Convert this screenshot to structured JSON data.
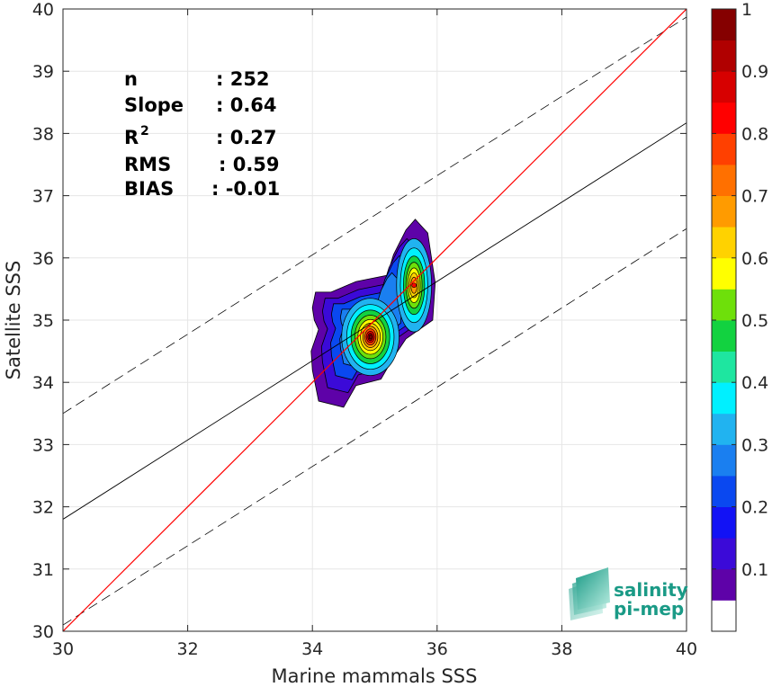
{
  "chart_data": {
    "type": "heatmap",
    "xlabel": "Marine mammals SSS",
    "ylabel": "Satellite SSS",
    "xlim": [
      30,
      40
    ],
    "ylim": [
      30,
      40
    ],
    "x_ticks": [
      "30",
      "32",
      "34",
      "36",
      "38",
      "40"
    ],
    "y_ticks": [
      "30",
      "31",
      "32",
      "33",
      "34",
      "35",
      "36",
      "37",
      "38",
      "39",
      "40"
    ],
    "grid": true,
    "stats": [
      {
        "label": "n",
        "value": ": 252"
      },
      {
        "label": "Slope",
        "value": ": 0.64"
      },
      {
        "label": "R",
        "sup": "2",
        "value": ": 0.27"
      },
      {
        "label": "RMS",
        "value": ": 0.59"
      },
      {
        "label": "BIAS",
        "value": ": -0.01"
      }
    ],
    "lines": {
      "identity": {
        "color": "#ff0000",
        "slope": 1,
        "intercept": 0
      },
      "regression": {
        "color": "#000000",
        "x": [
          30,
          40
        ],
        "y": [
          31.8,
          38.17
        ]
      },
      "upper_bound": {
        "color": "#000000",
        "dash": true,
        "x": [
          30,
          40
        ],
        "y": [
          33.5,
          39.87
        ]
      },
      "lower_bound": {
        "color": "#000000",
        "dash": true,
        "x": [
          30,
          40
        ],
        "y": [
          30.1,
          36.47
        ]
      }
    },
    "density": {
      "peaks": [
        {
          "x": 34.93,
          "y": 34.73,
          "value": 1.0
        },
        {
          "x": 35.63,
          "y": 35.56,
          "value": 0.7
        }
      ],
      "extent_x": [
        33.98,
        36.0
      ],
      "extent_y": [
        33.58,
        36.62
      ]
    },
    "colorbar": {
      "ticks": [
        "0.1",
        "0.2",
        "0.3",
        "0.4",
        "0.5",
        "0.6",
        "0.7",
        "0.8",
        "0.9",
        "1"
      ],
      "colors": [
        "#ffffff",
        "#5e02a8",
        "#3b0ad8",
        "#1212f5",
        "#0a48f0",
        "#1a7ff0",
        "#21b3f0",
        "#00f0ff",
        "#1ee6a0",
        "#12d240",
        "#6ee00a",
        "#ffff00",
        "#ffd200",
        "#ff9b00",
        "#ff7000",
        "#ff4000",
        "#ff0000",
        "#d70000",
        "#b00000",
        "#850000"
      ]
    }
  },
  "logo": {
    "line1": "salinity",
    "line2": "pi-mep"
  }
}
